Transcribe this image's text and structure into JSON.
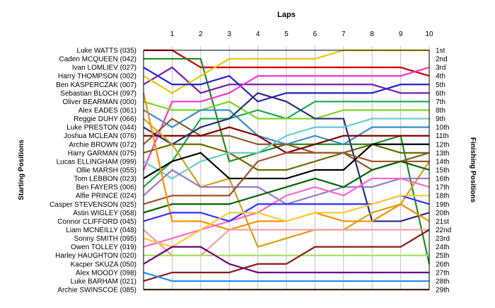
{
  "chart_data": {
    "type": "line",
    "title": "Laps",
    "ylabel_left": "Starting Positions",
    "ylabel_right": "Finishing Positions",
    "x": [
      0,
      1,
      2,
      3,
      4,
      5,
      6,
      7,
      8,
      9,
      10
    ],
    "x_tick_labels": [
      "1",
      "2",
      "3",
      "4",
      "5",
      "6",
      "7",
      "8",
      "9",
      "10"
    ],
    "y_range": [
      1,
      29
    ],
    "grid": true,
    "finishing_labels": [
      "1st",
      "2nd",
      "3rd",
      "4th",
      "5th",
      "6th",
      "7th",
      "8th",
      "9th",
      "10th",
      "11th",
      "12th",
      "13th",
      "14th",
      "15th",
      "16th",
      "17th",
      "18th",
      "19th",
      "20th",
      "21st",
      "22nd",
      "23rd",
      "24th",
      "25th",
      "26th",
      "27th",
      "28th",
      "29th"
    ],
    "series": [
      {
        "name": "Luke WATTS (035)",
        "color": "#cc0000",
        "values": [
          1,
          1,
          3,
          3,
          3,
          3,
          3,
          3,
          3,
          3,
          4
        ]
      },
      {
        "name": "Caden MCQUEEN (042)",
        "color": "#228b22",
        "values": [
          2,
          2,
          2,
          14,
          13,
          12,
          12,
          12,
          12,
          11,
          26
        ]
      },
      {
        "name": "Ivan LOMLIEV (027)",
        "color": "#7a1fa2",
        "values": [
          5,
          3,
          6,
          5,
          5,
          5,
          5,
          5,
          5,
          6,
          6
        ]
      },
      {
        "name": "Harry THOMPSON (002)",
        "color": "#e6c800",
        "values": [
          4,
          6,
          4,
          2,
          2,
          2,
          2,
          1,
          1,
          1,
          1
        ]
      },
      {
        "name": "Ben KASPERCZAK (007)",
        "color": "#2222cc",
        "values": [
          3,
          5,
          5,
          4,
          7,
          6,
          6,
          6,
          6,
          5,
          5
        ]
      },
      {
        "name": "Sebastian BLOCH (097)",
        "color": "#ff33cc",
        "values": [
          15,
          7,
          7,
          6,
          4,
          4,
          4,
          4,
          4,
          4,
          3
        ]
      },
      {
        "name": "Oliver BEARMAN (000)",
        "color": "#1aa84a",
        "values": [
          17,
          14,
          9,
          9,
          8,
          9,
          7,
          7,
          7,
          7,
          7
        ]
      },
      {
        "name": "Alex EADES (061)",
        "color": "#7fd41e",
        "values": [
          7,
          8,
          8,
          7,
          9,
          9,
          9,
          8,
          8,
          8,
          8
        ]
      },
      {
        "name": "Reggie DUHY (066)",
        "color": "#3a8ccc",
        "values": [
          8,
          10,
          8,
          8,
          11,
          12,
          11,
          12,
          10,
          10,
          10
        ]
      },
      {
        "name": "Luke PRESTON (044)",
        "color": "#8b5a2b",
        "values": [
          12,
          9,
          11,
          11,
          12,
          12,
          13,
          13,
          15,
          14,
          13
        ]
      },
      {
        "name": "Joshua MCLEAN (076)",
        "color": "#800000",
        "values": [
          11,
          11,
          11,
          10,
          11,
          13,
          12,
          11,
          11,
          11,
          11
        ]
      },
      {
        "name": "Archie BROWN (072)",
        "color": "#6b6b00",
        "values": [
          13,
          12,
          12,
          13,
          15,
          15,
          14,
          13,
          12,
          13,
          13
        ]
      },
      {
        "name": "Harry GARMAN (075)",
        "color": "#2b2b7a",
        "values": [
          10,
          12,
          10,
          9,
          6,
          7,
          9,
          9,
          21,
          21,
          20
        ]
      },
      {
        "name": "Lucas ELLINGHAM (099)",
        "color": "#d4a017",
        "values": [
          9,
          12,
          17,
          16,
          24,
          23,
          22,
          22,
          20,
          19,
          14
        ]
      },
      {
        "name": "Ollie MARSH (055)",
        "color": "#66cccc",
        "values": [
          14,
          16,
          14,
          13,
          13,
          11,
          10,
          10,
          9,
          9,
          9
        ]
      },
      {
        "name": "Tom LEBBON (023)",
        "color": "#000000",
        "values": [
          16,
          14,
          13,
          16,
          16,
          16,
          15,
          15,
          12,
          12,
          12
        ]
      },
      {
        "name": "Ben FAYERS (006)",
        "color": "#9a7ac8",
        "values": [
          18,
          15,
          17,
          17,
          17,
          19,
          18,
          17,
          17,
          16,
          16
        ]
      },
      {
        "name": "Alfie PRINCE (024)",
        "color": "#a0522d",
        "values": [
          19,
          18,
          18,
          18,
          14,
          13,
          13,
          13,
          14,
          14,
          14
        ]
      },
      {
        "name": "Casper STEVENSON (025)",
        "color": "#006400",
        "values": [
          20,
          19,
          19,
          19,
          18,
          17,
          16,
          17,
          15,
          14,
          15
        ]
      },
      {
        "name": "Astin WIGLEY (058)",
        "color": "#ff8c00",
        "values": [
          6,
          21,
          21,
          22,
          21,
          21,
          20,
          21,
          21,
          19,
          21
        ]
      },
      {
        "name": "Connor CLIFFORD (045)",
        "color": "#ff66cc",
        "values": [
          24,
          23,
          22,
          21,
          20,
          18,
          17,
          18,
          16,
          16,
          17
        ]
      },
      {
        "name": "Liam MCNEILLY (048)",
        "color": "#3333ff",
        "values": [
          21,
          20,
          20,
          21,
          19,
          19,
          19,
          19,
          19,
          18,
          19
        ]
      },
      {
        "name": "Sonny SMITH (095)",
        "color": "#ffcc33",
        "values": [
          23,
          24,
          22,
          20,
          20,
          21,
          20,
          20,
          19,
          18,
          18
        ]
      },
      {
        "name": "Owen TOLLEY (019)",
        "color": "#f4a0a0",
        "values": [
          22,
          25,
          25,
          22,
          22,
          22,
          22,
          22,
          22,
          22,
          22
        ]
      },
      {
        "name": "Harley HAUGHTON (020)",
        "color": "#a8e05f",
        "values": [
          25,
          25,
          25,
          25,
          25,
          25,
          25,
          25,
          25,
          25,
          25
        ]
      },
      {
        "name": "Kacper SKUZA (050)",
        "color": "#8b1a1a",
        "values": [
          28,
          27,
          27,
          27,
          26,
          26,
          24,
          24,
          24,
          24,
          22
        ]
      },
      {
        "name": "Alex MOODY (098)",
        "color": "#6a0080",
        "values": [
          26,
          24,
          24,
          26,
          27,
          27,
          27,
          27,
          27,
          27,
          27
        ]
      },
      {
        "name": "Luke BARHAM (021)",
        "color": "#1e90ff",
        "values": [
          27,
          28,
          28,
          28,
          28,
          28,
          28,
          28,
          28,
          28,
          28
        ]
      },
      {
        "name": "Archie SWINSCOE (085)",
        "color": "#6b4a2b",
        "values": [
          29,
          29,
          29,
          29,
          29,
          29,
          29,
          29,
          29,
          29,
          29
        ]
      }
    ]
  }
}
